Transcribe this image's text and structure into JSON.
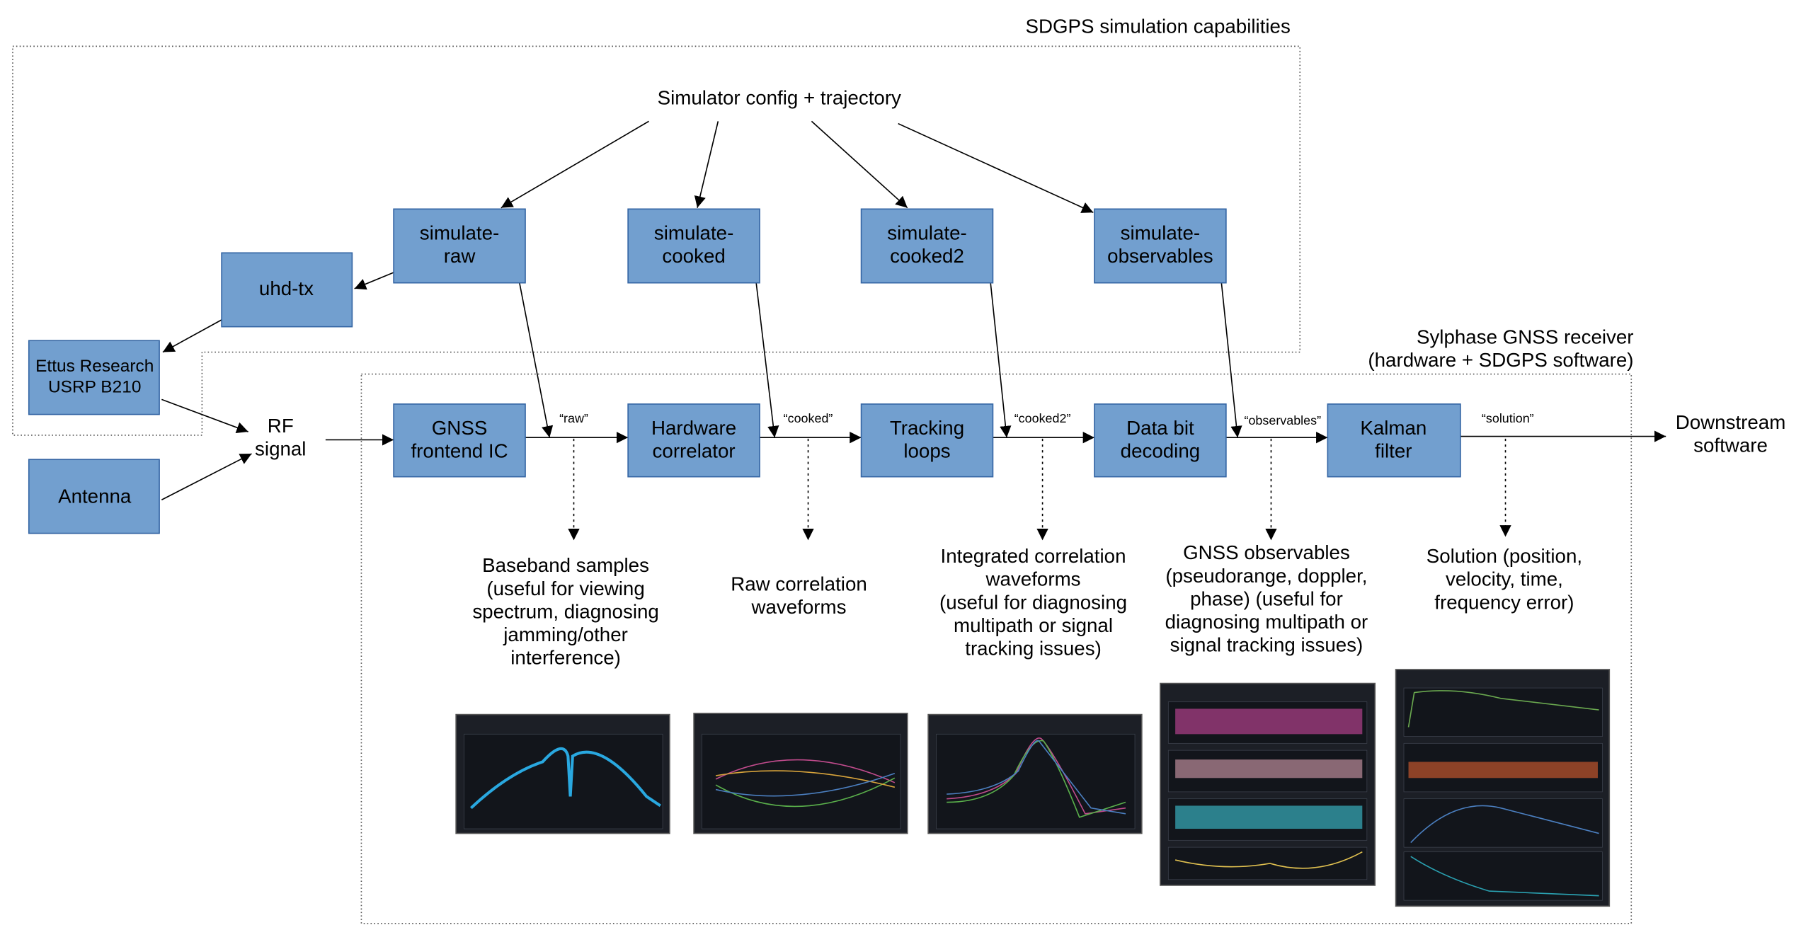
{
  "groups": [
    {
      "title": [
        "SDGPS simulation capabilities"
      ]
    },
    {
      "title": [
        "Sylphase GNSS receiver",
        "(hardware + SDGPS software)"
      ]
    }
  ],
  "nodes": [
    {
      "label": [
        "Simulator config + trajectory"
      ]
    },
    {
      "label": [
        "simulate-",
        "raw"
      ]
    },
    {
      "label": [
        "simulate-",
        "cooked"
      ]
    },
    {
      "label": [
        "simulate-",
        "cooked2"
      ]
    },
    {
      "label": [
        "simulate-",
        "observables"
      ]
    },
    {
      "label": [
        "uhd-tx"
      ]
    },
    {
      "label": [
        "Ettus Research",
        "USRP B210"
      ]
    },
    {
      "label": [
        "Antenna"
      ]
    },
    {
      "label": [
        "RF",
        "signal"
      ]
    },
    {
      "label": [
        "GNSS",
        "frontend IC"
      ]
    },
    {
      "label": [
        "Hardware",
        "correlator"
      ]
    },
    {
      "label": [
        "Tracking",
        "loops"
      ]
    },
    {
      "label": [
        "Data bit",
        "decoding"
      ]
    },
    {
      "label": [
        "Kalman",
        "filter"
      ]
    },
    {
      "label": [
        "Downstream",
        "software"
      ]
    }
  ],
  "edge_labels": [
    "“raw”",
    "“cooked”",
    "“cooked2”",
    "“observables”",
    "“solution”"
  ],
  "outputs": [
    {
      "label": [
        "Baseband samples",
        "(useful for viewing",
        "spectrum, diagnosing",
        "jamming/other",
        "interference)"
      ]
    },
    {
      "label": [
        "Raw correlation",
        "waveforms"
      ]
    },
    {
      "label": [
        "Integrated correlation",
        "waveforms",
        "(useful for diagnosing",
        "multipath or signal",
        "tracking issues)"
      ]
    },
    {
      "label": [
        "GNSS observables",
        "(pseudorange, doppler,",
        "phase) (useful for",
        "diagnosing multipath or",
        "signal tracking issues)"
      ]
    },
    {
      "label": [
        "Solution (position,",
        "velocity, time,",
        "frequency error)"
      ]
    }
  ]
}
